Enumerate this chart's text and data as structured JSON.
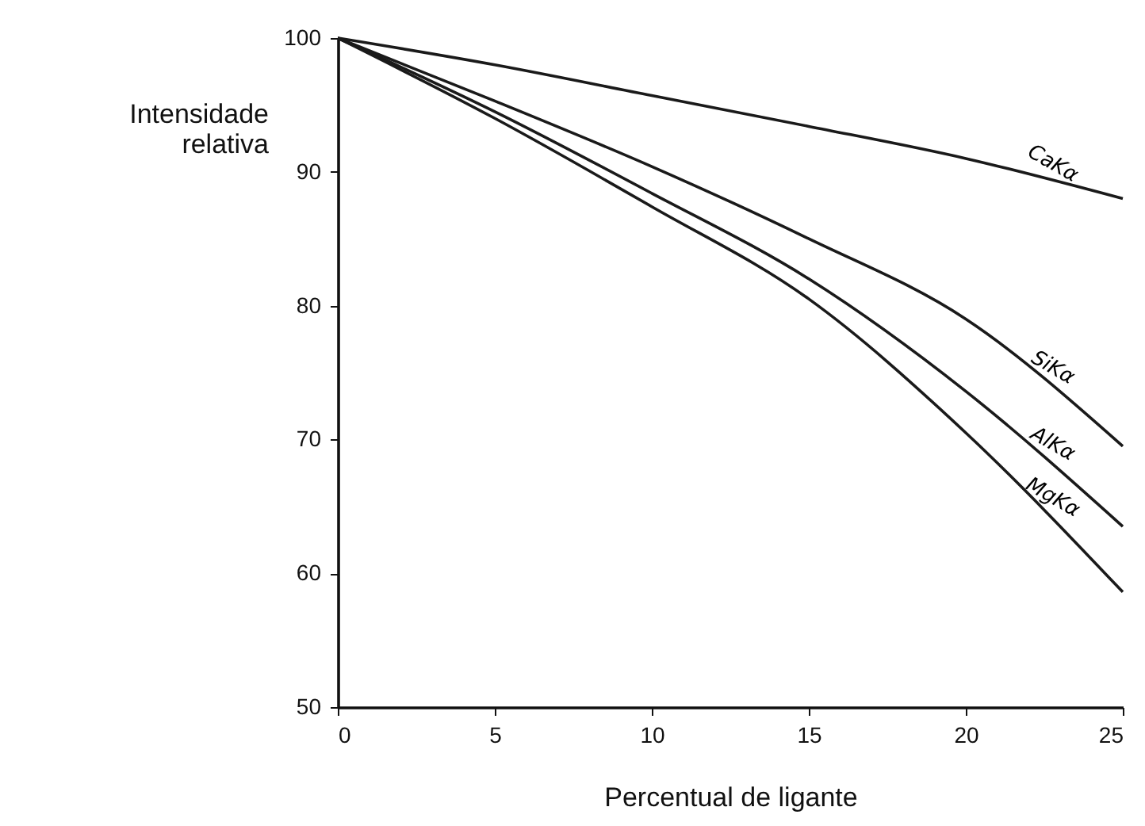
{
  "chart_data": {
    "type": "line",
    "xlabel": "Percentual de ligante",
    "ylabel": "Intensidade relativa",
    "x": [
      0,
      5,
      10,
      15,
      20,
      25
    ],
    "series": [
      {
        "name": "CaKα",
        "color": "#1a1a1a",
        "values": [
          100,
          98.0,
          95.7,
          93.4,
          91.0,
          88.0
        ]
      },
      {
        "name": "SiKα",
        "color": "#1a1a1a",
        "values": [
          100,
          95.3,
          90.4,
          85.0,
          79.0,
          69.5
        ]
      },
      {
        "name": "AlKα",
        "color": "#1a1a1a",
        "values": [
          100,
          94.5,
          88.4,
          82.0,
          73.6,
          63.5
        ]
      },
      {
        "name": "MgKα",
        "color": "#1a1a1a",
        "values": [
          100,
          94.0,
          87.4,
          80.5,
          70.5,
          58.6
        ]
      }
    ],
    "xlim": [
      0,
      25
    ],
    "xticks": [
      0,
      5,
      10,
      15,
      20,
      25
    ],
    "ylim": [
      50,
      100
    ],
    "yticks": [
      50,
      60,
      70,
      80,
      90,
      100
    ],
    "grid": false,
    "marker": "none",
    "line_style": "solid",
    "legend": false
  }
}
